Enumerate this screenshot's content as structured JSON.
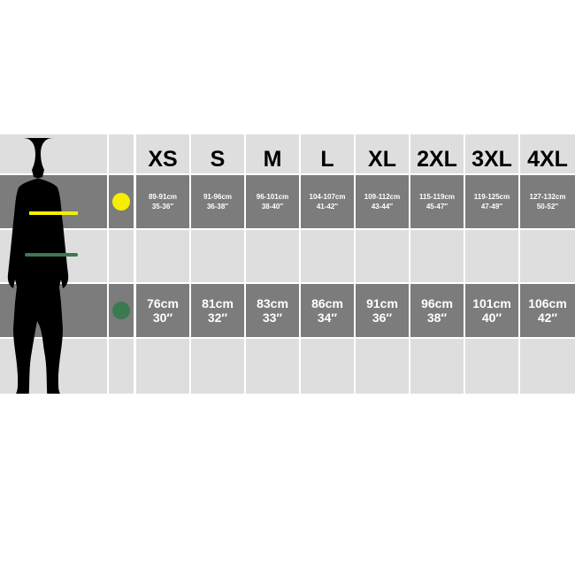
{
  "sizes": [
    "XS",
    "S",
    "M",
    "L",
    "XL",
    "2XL",
    "3XL",
    "4XL"
  ],
  "chest": {
    "color": "#f5ee00",
    "cm": [
      "89-91cm",
      "91-96cm",
      "96-101cm",
      "104-107cm",
      "109-112cm",
      "115-119cm",
      "119-125cm",
      "127-132cm"
    ],
    "in": [
      "35-36″",
      "36-38″",
      "38-40″",
      "41-42″",
      "43-44″",
      "45-47″",
      "47-49″",
      "50-52″"
    ]
  },
  "waist": {
    "color": "#3a7a50",
    "cm": [
      "76cm",
      "81cm",
      "83cm",
      "86cm",
      "91cm",
      "96cm",
      "101cm",
      "106cm"
    ],
    "in": [
      "30″",
      "32″",
      "33″",
      "34″",
      "36″",
      "38″",
      "40″",
      "42″"
    ]
  }
}
